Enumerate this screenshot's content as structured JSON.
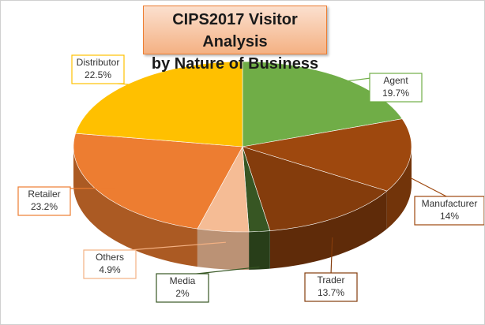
{
  "chart_data": {
    "type": "pie3d",
    "title": "CIPS2017 Visitor  Analysis\nby Nature of Business",
    "categories": [
      "Agent",
      "Manufacturer",
      "Trader",
      "Media",
      "Others",
      "Retailer",
      "Distributor"
    ],
    "values": [
      19.7,
      14,
      13.7,
      2,
      4.9,
      23.2,
      22.5
    ],
    "value_labels": [
      "19.7%",
      "14%",
      "13.7%",
      "2%",
      "4.9%",
      "23.2%",
      "22.5%"
    ],
    "colors": [
      "#70ad47",
      "#9e480e",
      "#843c0c",
      "#375623",
      "#f4b183",
      "#ed7d31",
      "#ffc000"
    ]
  }
}
